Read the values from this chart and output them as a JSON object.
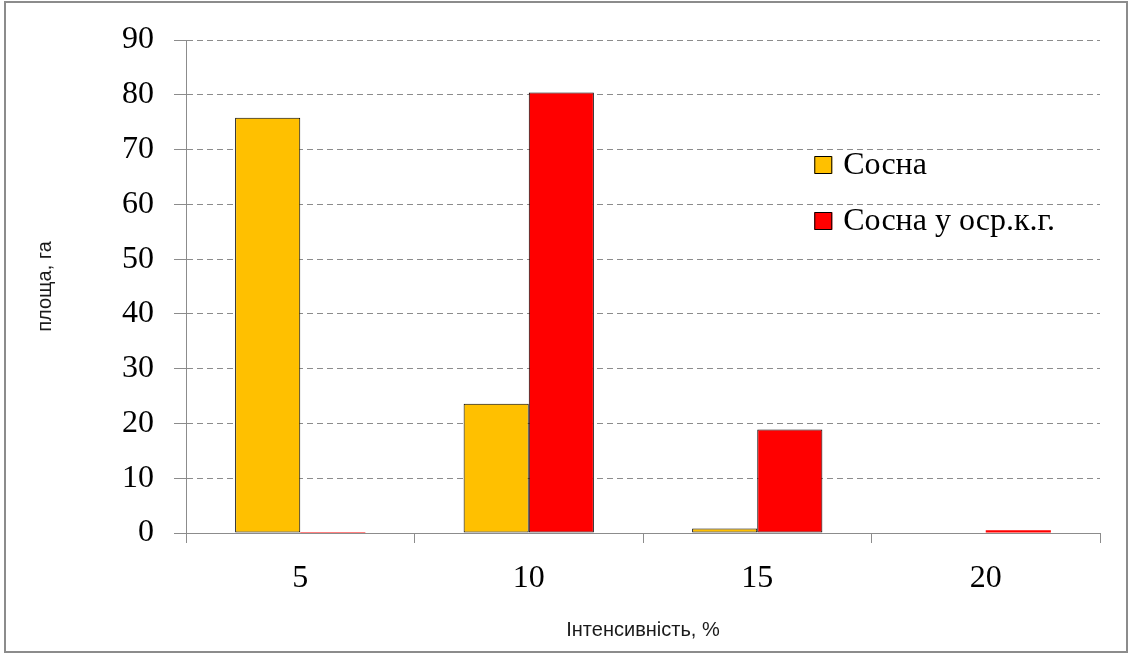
{
  "chart_data": {
    "type": "bar",
    "xlabel": "Інтенсивність, %",
    "ylabel": "площа, га",
    "categories": [
      "5",
      "10",
      "15",
      "20"
    ],
    "series": [
      {
        "name": "Сосна",
        "color": "#ffc000",
        "values": [
          75.8,
          23.6,
          0.8,
          0
        ]
      },
      {
        "name": "Сосна у оср.к.г.",
        "color": "#ff0000",
        "values": [
          0.2,
          80.4,
          18.9,
          0.5
        ]
      }
    ],
    "ylim": [
      0,
      90
    ],
    "yticks": [
      0,
      10,
      20,
      30,
      40,
      50,
      60,
      70,
      80,
      90
    ],
    "grid": "y",
    "legend": "top right"
  }
}
